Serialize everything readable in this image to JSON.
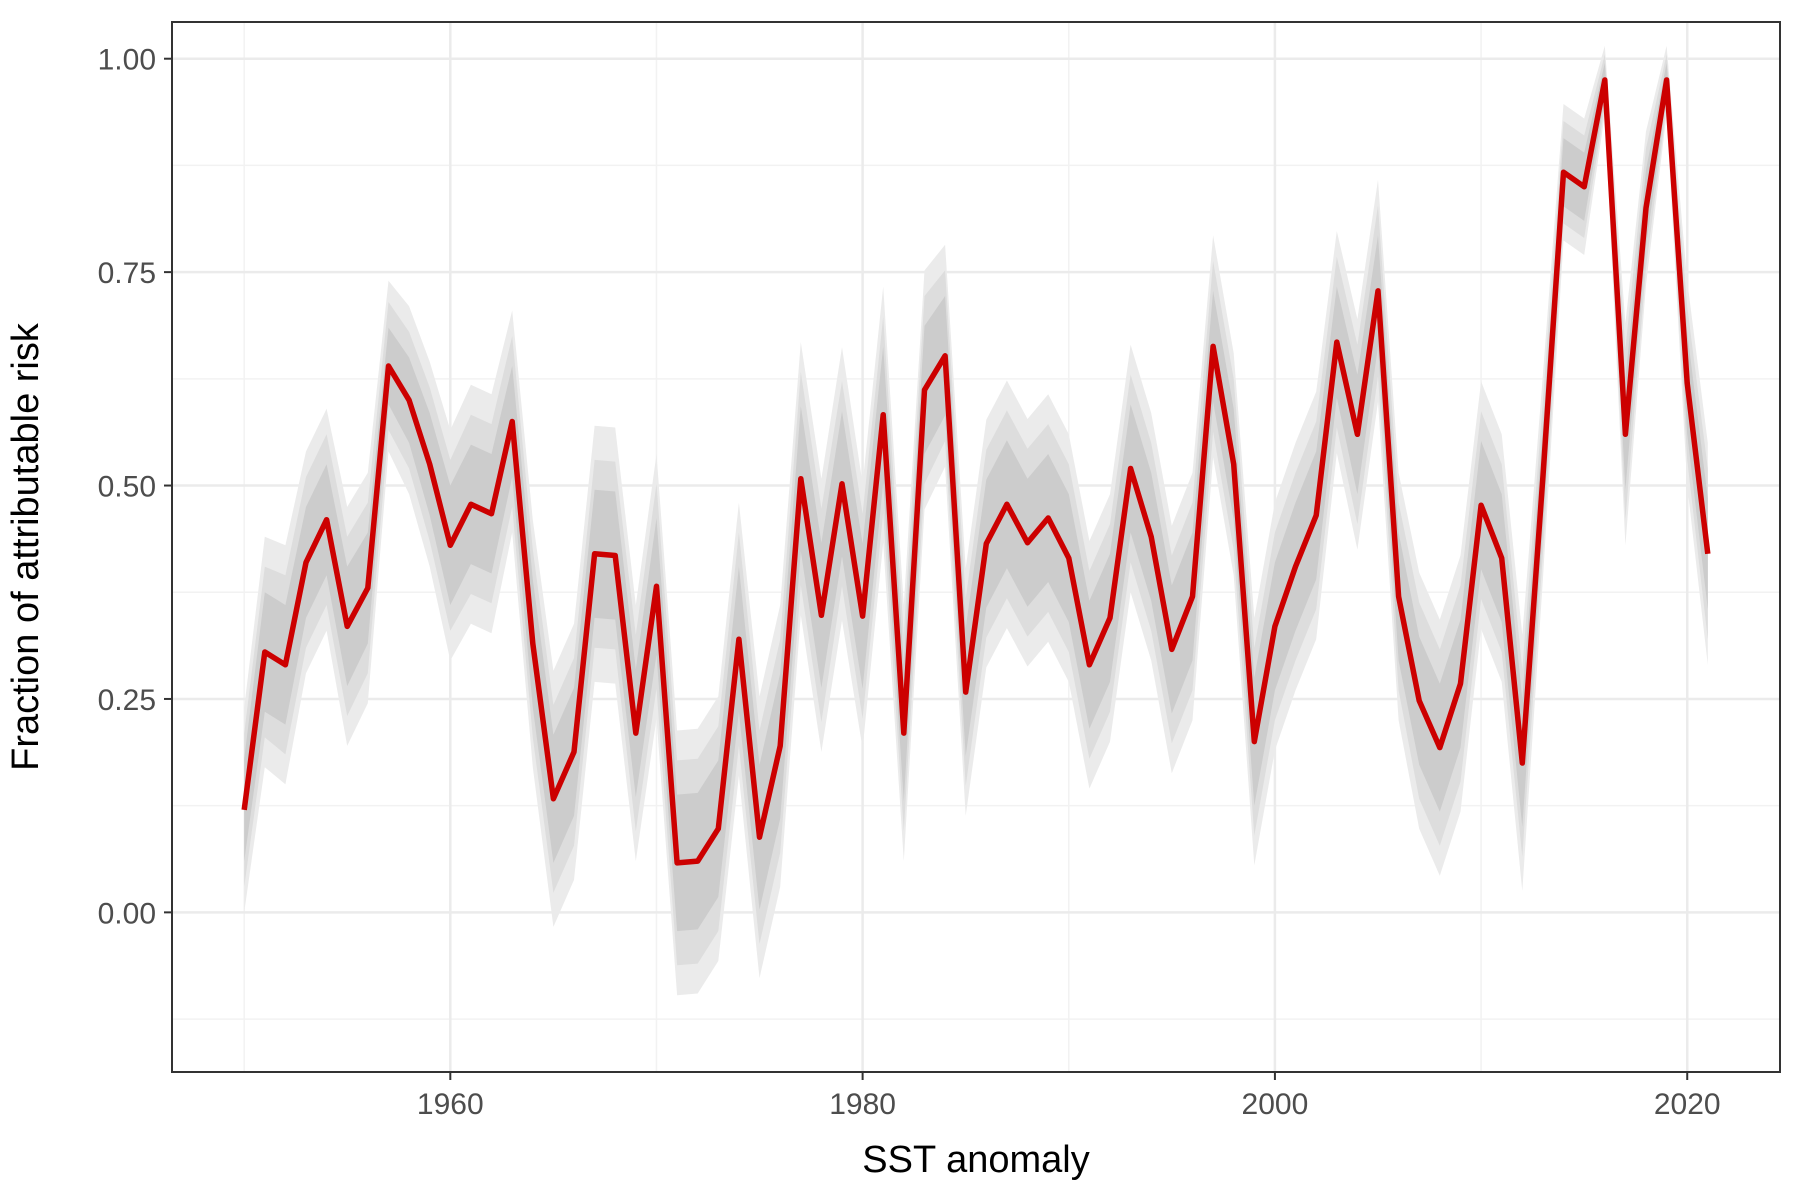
{
  "chart_data": {
    "type": "line",
    "title": "",
    "xlabel": "SST anomaly",
    "ylabel": "Fraction of attributable risk",
    "xlim": [
      1946.5,
      2024.5
    ],
    "ylim": [
      -0.187,
      1.043
    ],
    "x_ticks": [
      1960,
      1980,
      2000,
      2020
    ],
    "y_ticks": [
      0.0,
      0.25,
      0.5,
      0.75,
      1.0
    ],
    "y_tick_labels": [
      "0.00",
      "0.25",
      "0.50",
      "0.75",
      "1.00"
    ],
    "grid": true,
    "legend": "none",
    "line_color": "#cc0000",
    "band_colors": [
      "#ebebeb",
      "#dddddd",
      "#cccccc"
    ],
    "x": [
      1950,
      1951,
      1952,
      1953,
      1954,
      1955,
      1956,
      1957,
      1958,
      1959,
      1960,
      1961,
      1962,
      1963,
      1964,
      1965,
      1966,
      1967,
      1968,
      1969,
      1970,
      1971,
      1972,
      1973,
      1974,
      1975,
      1976,
      1977,
      1978,
      1979,
      1980,
      1981,
      1982,
      1983,
      1984,
      1985,
      1986,
      1987,
      1988,
      1989,
      1990,
      1991,
      1992,
      1993,
      1994,
      1995,
      1996,
      1997,
      1998,
      1999,
      2000,
      2001,
      2002,
      2003,
      2004,
      2005,
      2006,
      2007,
      2008,
      2009,
      2010,
      2011,
      2012,
      2013,
      2014,
      2015,
      2016,
      2017,
      2018,
      2019,
      2020,
      2021
    ],
    "series": [
      {
        "values": [
          0.12,
          0.305,
          0.29,
          0.41,
          0.46,
          0.335,
          0.38,
          0.64,
          0.6,
          0.525,
          0.43,
          0.478,
          0.467,
          0.575,
          0.315,
          0.133,
          0.188,
          0.42,
          0.418,
          0.21,
          0.382,
          0.058,
          0.06,
          0.098,
          0.32,
          0.088,
          0.195,
          0.508,
          0.348,
          0.502,
          0.347,
          0.583,
          0.21,
          0.612,
          0.652,
          0.258,
          0.432,
          0.478,
          0.433,
          0.462,
          0.415,
          0.29,
          0.345,
          0.52,
          0.44,
          0.308,
          0.37,
          0.663,
          0.525,
          0.2,
          0.335,
          0.405,
          0.465,
          0.668,
          0.56,
          0.728,
          0.37,
          0.248,
          0.193,
          0.268,
          0.477,
          0.415,
          0.175,
          0.51,
          0.867,
          0.85,
          0.975,
          0.56,
          0.825,
          0.975,
          0.62,
          0.42
        ],
        "band_half_widths": [
          [
            0.06,
            0.07,
            0.07,
            0.065,
            0.065,
            0.07,
            0.065,
            0.045,
            0.05,
            0.06,
            0.07,
            0.07,
            0.07,
            0.065,
            0.075,
            0.075,
            0.075,
            0.075,
            0.075,
            0.075,
            0.08,
            0.08,
            0.08,
            0.08,
            0.085,
            0.085,
            0.085,
            0.085,
            0.085,
            0.085,
            0.085,
            0.08,
            0.08,
            0.075,
            0.07,
            0.075,
            0.075,
            0.075,
            0.075,
            0.075,
            0.075,
            0.075,
            0.075,
            0.075,
            0.075,
            0.075,
            0.075,
            0.065,
            0.065,
            0.075,
            0.075,
            0.075,
            0.075,
            0.065,
            0.07,
            0.065,
            0.075,
            0.075,
            0.075,
            0.075,
            0.075,
            0.075,
            0.075,
            0.06,
            0.04,
            0.04,
            0.02,
            0.065,
            0.045,
            0.02,
            0.06,
            0.065
          ],
          [
            0.09,
            0.1,
            0.105,
            0.1,
            0.1,
            0.105,
            0.1,
            0.075,
            0.08,
            0.09,
            0.1,
            0.105,
            0.105,
            0.1,
            0.11,
            0.11,
            0.11,
            0.11,
            0.11,
            0.115,
            0.12,
            0.12,
            0.12,
            0.12,
            0.125,
            0.125,
            0.125,
            0.125,
            0.125,
            0.12,
            0.12,
            0.115,
            0.115,
            0.11,
            0.1,
            0.11,
            0.11,
            0.11,
            0.11,
            0.11,
            0.11,
            0.11,
            0.11,
            0.11,
            0.11,
            0.11,
            0.11,
            0.1,
            0.1,
            0.11,
            0.11,
            0.11,
            0.11,
            0.1,
            0.105,
            0.1,
            0.11,
            0.115,
            0.115,
            0.115,
            0.11,
            0.11,
            0.11,
            0.09,
            0.06,
            0.06,
            0.03,
            0.1,
            0.07,
            0.03,
            0.09,
            0.1
          ],
          [
            0.12,
            0.135,
            0.14,
            0.13,
            0.13,
            0.14,
            0.135,
            0.1,
            0.11,
            0.12,
            0.135,
            0.14,
            0.14,
            0.13,
            0.145,
            0.15,
            0.15,
            0.15,
            0.15,
            0.15,
            0.155,
            0.155,
            0.155,
            0.155,
            0.16,
            0.165,
            0.165,
            0.16,
            0.16,
            0.16,
            0.155,
            0.15,
            0.15,
            0.14,
            0.13,
            0.145,
            0.145,
            0.145,
            0.145,
            0.145,
            0.145,
            0.145,
            0.145,
            0.145,
            0.145,
            0.145,
            0.145,
            0.13,
            0.13,
            0.145,
            0.145,
            0.145,
            0.145,
            0.13,
            0.135,
            0.13,
            0.145,
            0.15,
            0.15,
            0.15,
            0.145,
            0.145,
            0.15,
            0.12,
            0.08,
            0.08,
            0.04,
            0.13,
            0.09,
            0.04,
            0.12,
            0.13
          ]
        ]
      }
    ]
  }
}
